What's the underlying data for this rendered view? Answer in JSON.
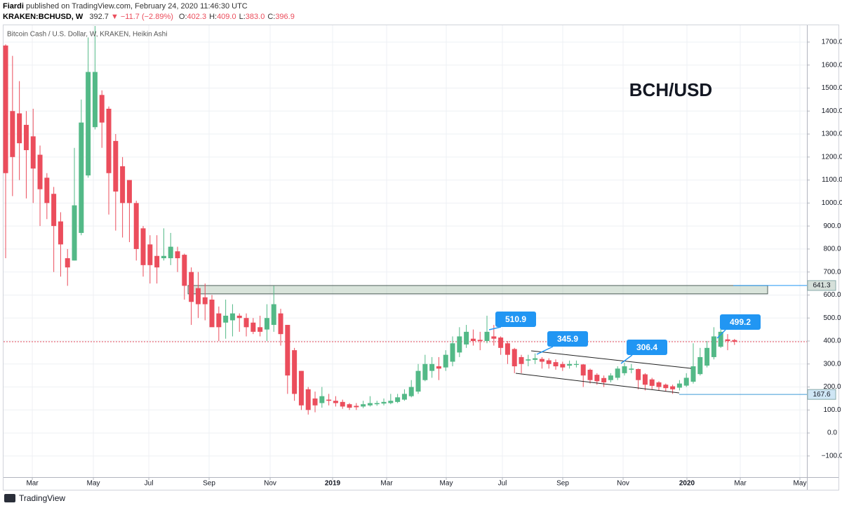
{
  "header": {
    "author": "Fiardi",
    "published": "published on TradingView.com, February 24, 2020 11:46:30 UTC",
    "symbol": "KRAKEN:BCHUSD, W",
    "last": "392.7",
    "change": "▼ −11.7 (−2.89%)",
    "ohlc": [
      {
        "key": "O:",
        "val": "402.3"
      },
      {
        "key": "H:",
        "val": "409.0"
      },
      {
        "key": "L:",
        "val": "383.0"
      },
      {
        "key": "C:",
        "val": "396.9"
      }
    ]
  },
  "chart_data": {
    "type": "candlestick",
    "title": "BCH/USD",
    "subtitle": "Bitcoin Cash / U.S. Dollar, W, KRAKEN, Heikin Ashi",
    "up_color": "#53b987",
    "down_color": "#eb4d5c",
    "grid": true,
    "open": [
      1685,
      1400,
      1390,
      1340,
      1290,
      1210,
      1110,
      1040,
      920,
      760,
      750,
      870,
      1120,
      1330,
      1470,
      1410,
      1270,
      1160,
      1100,
      1000,
      890,
      820,
      770,
      760,
      760,
      790,
      775,
      700,
      630,
      590,
      580,
      520,
      480,
      490,
      510,
      500,
      480,
      460,
      450,
      470,
      520,
      470,
      360,
      270,
      190,
      150,
      130,
      145,
      140,
      135,
      125,
      118,
      115,
      120,
      125,
      128,
      130,
      135,
      145,
      160,
      180,
      230,
      270,
      290,
      285,
      310,
      350,
      385,
      410,
      405,
      400,
      420,
      415,
      390,
      365,
      330,
      315,
      318,
      322,
      316,
      308,
      300,
      293,
      296,
      298,
      275,
      253,
      239,
      230,
      240,
      260,
      275,
      278,
      255,
      233,
      220,
      210,
      203,
      197,
      206,
      223,
      256,
      293,
      330,
      375,
      407,
      404
    ],
    "high": [
      1690,
      1640,
      1530,
      1400,
      1410,
      1250,
      1130,
      1070,
      960,
      800,
      1240,
      1450,
      1720,
      1770,
      1490,
      1420,
      1300,
      1200,
      1100,
      1010,
      900,
      860,
      860,
      890,
      870,
      810,
      780,
      720,
      700,
      650,
      600,
      550,
      580,
      560,
      520,
      520,
      500,
      510,
      560,
      640,
      540,
      470,
      370,
      270,
      200,
      180,
      200,
      170,
      160,
      145,
      130,
      130,
      140,
      160,
      140,
      150,
      170,
      170,
      190,
      230,
      300,
      340,
      330,
      330,
      360,
      420,
      460,
      470,
      450,
      440,
      510,
      470,
      420,
      400,
      370,
      340,
      340,
      346,
      330,
      325,
      320,
      310,
      315,
      315,
      300,
      280,
      260,
      250,
      260,
      290,
      306,
      300,
      280,
      260,
      240,
      225,
      215,
      210,
      230,
      260,
      390,
      370,
      400,
      460,
      499,
      430,
      409
    ],
    "low": [
      760,
      1030,
      1100,
      1020,
      1000,
      900,
      930,
      700,
      680,
      640,
      750,
      860,
      1110,
      1320,
      1240,
      950,
      880,
      850,
      830,
      750,
      680,
      650,
      650,
      750,
      730,
      700,
      580,
      470,
      500,
      490,
      470,
      400,
      410,
      420,
      440,
      420,
      430,
      420,
      400,
      440,
      380,
      170,
      140,
      100,
      80,
      90,
      110,
      120,
      115,
      105,
      100,
      100,
      108,
      115,
      118,
      120,
      125,
      130,
      140,
      155,
      170,
      225,
      240,
      230,
      270,
      290,
      330,
      370,
      380,
      360,
      390,
      380,
      340,
      300,
      260,
      260,
      290,
      300,
      280,
      280,
      275,
      270,
      280,
      285,
      200,
      215,
      210,
      200,
      220,
      230,
      250,
      260,
      190,
      185,
      190,
      185,
      180,
      170,
      185,
      200,
      215,
      250,
      285,
      320,
      370,
      360,
      383
    ],
    "close": [
      1130,
      1200,
      1260,
      1230,
      1150,
      1060,
      1000,
      900,
      820,
      720,
      990,
      1350,
      1570,
      1570,
      1350,
      1130,
      1050,
      1000,
      1000,
      800,
      730,
      730,
      720,
      770,
      810,
      760,
      640,
      570,
      560,
      560,
      460,
      460,
      510,
      520,
      500,
      460,
      440,
      440,
      500,
      560,
      430,
      250,
      170,
      120,
      100,
      120,
      160,
      140,
      130,
      115,
      110,
      112,
      125,
      130,
      130,
      135,
      140,
      155,
      170,
      200,
      270,
      300,
      300,
      280,
      340,
      390,
      420,
      440,
      400,
      400,
      440,
      410,
      370,
      340,
      290,
      300,
      320,
      325,
      310,
      300,
      290,
      285,
      300,
      300,
      250,
      230,
      225,
      220,
      250,
      280,
      290,
      280,
      230,
      210,
      205,
      200,
      195,
      190,
      215,
      240,
      290,
      330,
      370,
      420,
      440,
      400,
      397
    ],
    "xlim": [
      -0.31,
      116.53
    ],
    "xticks": [
      {
        "value": 3.88,
        "label": "Mar"
      },
      {
        "value": 12.76,
        "label": "May"
      },
      {
        "value": 20.82,
        "label": "Jul"
      },
      {
        "value": 29.59,
        "label": "Sep"
      },
      {
        "value": 38.47,
        "label": "Nov"
      },
      {
        "value": 47.55,
        "label": "2019"
      },
      {
        "value": 55.41,
        "label": "Mar"
      },
      {
        "value": 64.08,
        "label": "May"
      },
      {
        "value": 72.24,
        "label": "Jul"
      },
      {
        "value": 81.02,
        "label": "Sep"
      },
      {
        "value": 89.8,
        "label": "Nov"
      },
      {
        "value": 99.08,
        "label": "2020"
      },
      {
        "value": 106.84,
        "label": "Mar"
      },
      {
        "value": 115.51,
        "label": "May"
      }
    ],
    "ylim": [
      -192,
      1767
    ],
    "yticks": [
      {
        "value": -100,
        "label": "−100.0"
      },
      {
        "value": 0,
        "label": "0.0"
      },
      {
        "value": 100,
        "label": "100.0"
      },
      {
        "value": 200,
        "label": "200.0"
      },
      {
        "value": 300,
        "label": "300.0"
      },
      {
        "value": 400,
        "label": "400.0"
      },
      {
        "value": 500,
        "label": "500.0"
      },
      {
        "value": 600,
        "label": "600.0"
      },
      {
        "value": 700,
        "label": "700.0"
      },
      {
        "value": 800,
        "label": "800.0"
      },
      {
        "value": 900,
        "label": "900.0"
      },
      {
        "value": 1000,
        "label": "1000.0"
      },
      {
        "value": 1100,
        "label": "1100.0"
      },
      {
        "value": 1200,
        "label": "1200.0"
      },
      {
        "value": 1300,
        "label": "1300.0"
      },
      {
        "value": 1400,
        "label": "1400.0"
      },
      {
        "value": 1500,
        "label": "1500.0"
      },
      {
        "value": 1600,
        "label": "1600.0"
      },
      {
        "value": 1700,
        "label": "1700.0"
      }
    ],
    "resistance_zone": [
      605,
      641.3
    ],
    "levels": [
      641.3,
      167.6
    ],
    "last_close": 396.9,
    "callouts": [
      "510.9",
      "345.9",
      "306.4",
      "499.2"
    ]
  },
  "footer": {
    "brand": "TradingView"
  }
}
